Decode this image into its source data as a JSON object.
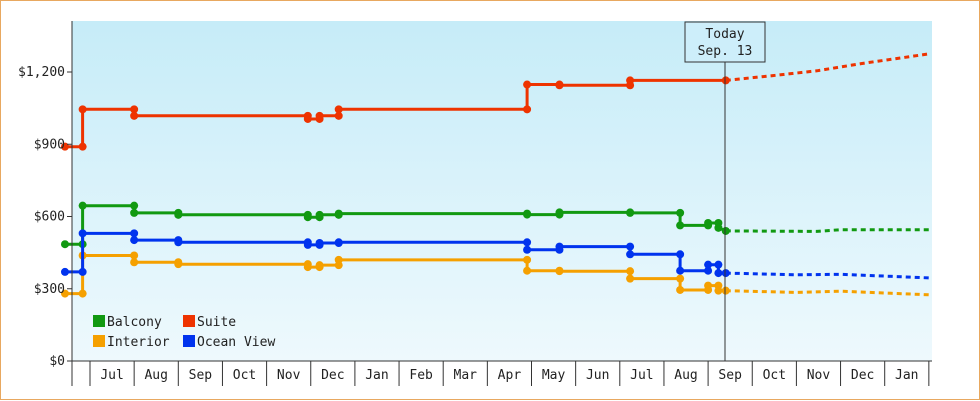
{
  "chart_data": {
    "type": "line",
    "today_marker": {
      "line1": "Today",
      "line2": "Sep. 13"
    },
    "y_ticks": [
      "$0",
      "$300",
      "$600",
      "$900",
      "$1,200"
    ],
    "y_tick_values": [
      0,
      300,
      600,
      900,
      1200
    ],
    "ylim": [
      0,
      1200
    ],
    "x_months": [
      "Jul",
      "Aug",
      "Sep",
      "Oct",
      "Nov",
      "Dec",
      "Jan",
      "Feb",
      "Mar",
      "Apr",
      "May",
      "Jun",
      "Jul",
      "Aug",
      "Sep",
      "Oct",
      "Nov",
      "Dec",
      "Jan"
    ],
    "grid": false,
    "legend_placement": "bottom-left",
    "series": [
      {
        "name": "Balcony",
        "color": "#119911",
        "points": [
          [
            "Jun 14",
            485
          ],
          [
            "Jun 26",
            485
          ],
          [
            "Jun 26",
            645
          ],
          [
            "Aug 1",
            645
          ],
          [
            "Aug 1",
            615
          ],
          [
            "Sep 1",
            615
          ],
          [
            "Sep 1",
            607
          ],
          [
            "Nov 29",
            607
          ],
          [
            "Nov 29",
            597
          ],
          [
            "Dec 7",
            597
          ],
          [
            "Dec 7",
            607
          ],
          [
            "Dec 20",
            607
          ],
          [
            "Dec 20",
            612
          ],
          [
            "Apr 28",
            612
          ],
          [
            "Apr 28",
            608
          ],
          [
            "May 20",
            608
          ],
          [
            "May 20",
            617
          ],
          [
            "Jul 8",
            617
          ],
          [
            "Jul 8",
            615
          ],
          [
            "Aug 12",
            615
          ],
          [
            "Aug 12",
            563
          ],
          [
            "Aug 31",
            563
          ],
          [
            "Aug 31",
            573
          ],
          [
            "Sep 8",
            573
          ],
          [
            "Sep 8",
            553
          ],
          [
            "Sep 13",
            540
          ]
        ],
        "forecast": [
          [
            "Sep 13",
            540
          ],
          [
            "Nov 15",
            538
          ],
          [
            "Dec 1",
            545
          ],
          [
            "Jan 31",
            545
          ]
        ]
      },
      {
        "name": "Suite",
        "color": "#ee3300",
        "points": [
          [
            "Jun 14",
            890
          ],
          [
            "Jun 26",
            890
          ],
          [
            "Jun 26",
            1045
          ],
          [
            "Aug 1",
            1045
          ],
          [
            "Aug 1",
            1018
          ],
          [
            "Nov 29",
            1018
          ],
          [
            "Nov 29",
            1005
          ],
          [
            "Dec 7",
            1005
          ],
          [
            "Dec 7",
            1018
          ],
          [
            "Dec 20",
            1018
          ],
          [
            "Dec 20",
            1045
          ],
          [
            "Apr 28",
            1045
          ],
          [
            "Apr 28",
            1148
          ],
          [
            "May 20",
            1148
          ],
          [
            "May 20",
            1145
          ],
          [
            "Jul 8",
            1145
          ],
          [
            "Jul 8",
            1165
          ],
          [
            "Sep 13",
            1165
          ]
        ],
        "forecast": [
          [
            "Sep 13",
            1165
          ],
          [
            "Oct 15",
            1185
          ],
          [
            "Nov 15",
            1205
          ],
          [
            "Dec 15",
            1235
          ],
          [
            "Jan 31",
            1275
          ]
        ]
      },
      {
        "name": "Interior",
        "color": "#f5a000",
        "points": [
          [
            "Jun 14",
            280
          ],
          [
            "Jun 26",
            280
          ],
          [
            "Jun 26",
            438
          ],
          [
            "Aug 1",
            438
          ],
          [
            "Aug 1",
            410
          ],
          [
            "Sep 1",
            410
          ],
          [
            "Sep 1",
            402
          ],
          [
            "Nov 29",
            402
          ],
          [
            "Nov 29",
            390
          ],
          [
            "Dec 7",
            390
          ],
          [
            "Dec 7",
            398
          ],
          [
            "Dec 20",
            398
          ],
          [
            "Dec 20",
            420
          ],
          [
            "Apr 28",
            420
          ],
          [
            "Apr 28",
            375
          ],
          [
            "May 20",
            375
          ],
          [
            "May 20",
            373
          ],
          [
            "Jul 8",
            373
          ],
          [
            "Jul 8",
            342
          ],
          [
            "Aug 12",
            342
          ],
          [
            "Aug 12",
            295
          ],
          [
            "Aug 31",
            295
          ],
          [
            "Aug 31",
            313
          ],
          [
            "Sep 8",
            313
          ],
          [
            "Sep 8",
            292
          ],
          [
            "Sep 13",
            292
          ]
        ],
        "forecast": [
          [
            "Sep 13",
            292
          ],
          [
            "Nov 1",
            285
          ],
          [
            "Dec 1",
            290
          ],
          [
            "Jan 31",
            275
          ]
        ]
      },
      {
        "name": "Ocean View",
        "color": "#0033ee",
        "points": [
          [
            "Jun 14",
            370
          ],
          [
            "Jun 26",
            370
          ],
          [
            "Jun 26",
            530
          ],
          [
            "Aug 1",
            530
          ],
          [
            "Aug 1",
            502
          ],
          [
            "Sep 1",
            502
          ],
          [
            "Sep 1",
            493
          ],
          [
            "Nov 29",
            493
          ],
          [
            "Nov 29",
            482
          ],
          [
            "Dec 7",
            482
          ],
          [
            "Dec 7",
            490
          ],
          [
            "Dec 20",
            490
          ],
          [
            "Dec 20",
            493
          ],
          [
            "Apr 28",
            493
          ],
          [
            "Apr 28",
            462
          ],
          [
            "May 20",
            462
          ],
          [
            "May 20",
            475
          ],
          [
            "Jul 8",
            475
          ],
          [
            "Jul 8",
            443
          ],
          [
            "Aug 12",
            443
          ],
          [
            "Aug 12",
            375
          ],
          [
            "Aug 31",
            375
          ],
          [
            "Aug 31",
            400
          ],
          [
            "Sep 8",
            400
          ],
          [
            "Sep 8",
            365
          ],
          [
            "Sep 13",
            365
          ]
        ],
        "forecast": [
          [
            "Sep 13",
            365
          ],
          [
            "Nov 1",
            358
          ],
          [
            "Dec 1",
            360
          ],
          [
            "Jan 31",
            345
          ]
        ]
      }
    ]
  }
}
